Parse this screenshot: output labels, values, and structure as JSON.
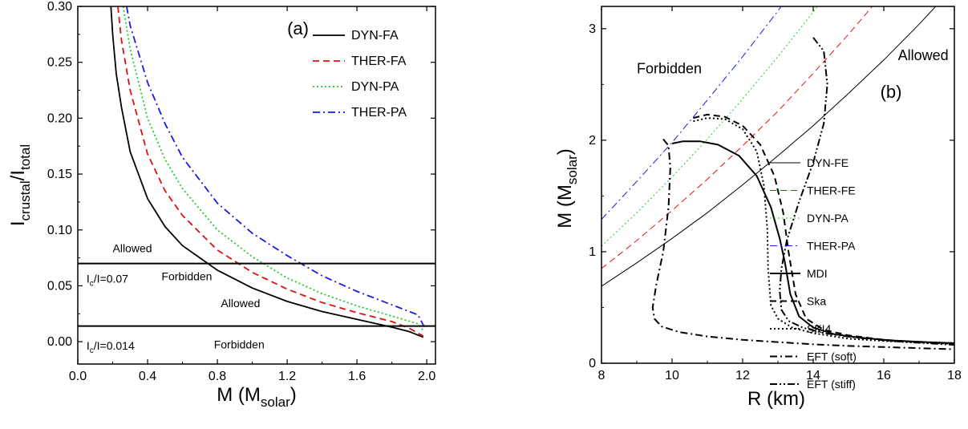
{
  "colors": {
    "black": "#000000",
    "red": "#e01010",
    "green": "#22cc22",
    "blue": "#1a1ae6"
  },
  "chart_data": [
    {
      "panel": "(a)",
      "type": "line",
      "xlabel": "M (M",
      "xlabel_sub": "solar",
      "xlabel_tail": ")",
      "ylabel_parts": [
        "I",
        "crustal",
        "/I",
        "total"
      ],
      "xlim": [
        0.0,
        2.05
      ],
      "ylim": [
        -0.02,
        0.3
      ],
      "x_ticks": [
        "0.0",
        "0.4",
        "0.8",
        "1.2",
        "1.6",
        "2.0"
      ],
      "x_tick_values": [
        0.0,
        0.4,
        0.8,
        1.2,
        1.6,
        2.0
      ],
      "y_ticks": [
        "0.00",
        "0.05",
        "0.10",
        "0.15",
        "0.20",
        "0.25",
        "0.30"
      ],
      "y_tick_values": [
        0.0,
        0.05,
        0.1,
        0.15,
        0.2,
        0.25,
        0.3
      ],
      "legend_position": "top-right",
      "series": [
        {
          "name": "DYN-FA",
          "color": "#000000",
          "dash": "solid",
          "x": [
            0.19,
            0.2,
            0.22,
            0.25,
            0.3,
            0.4,
            0.5,
            0.6,
            0.8,
            1.0,
            1.2,
            1.4,
            1.6,
            1.8,
            1.9,
            1.98
          ],
          "y": [
            0.3,
            0.275,
            0.24,
            0.21,
            0.17,
            0.128,
            0.103,
            0.086,
            0.064,
            0.048,
            0.036,
            0.027,
            0.02,
            0.013,
            0.009,
            0.004
          ]
        },
        {
          "name": "THER-FA",
          "color": "#e01010",
          "dash": "dash",
          "x": [
            0.23,
            0.25,
            0.3,
            0.4,
            0.5,
            0.6,
            0.8,
            1.0,
            1.2,
            1.4,
            1.6,
            1.8,
            1.9,
            1.98
          ],
          "y": [
            0.3,
            0.27,
            0.225,
            0.168,
            0.135,
            0.113,
            0.082,
            0.062,
            0.047,
            0.035,
            0.026,
            0.018,
            0.012,
            0.005
          ]
        },
        {
          "name": "DYN-PA",
          "color": "#22cc22",
          "dash": "dot",
          "x": [
            0.26,
            0.3,
            0.4,
            0.5,
            0.6,
            0.8,
            1.0,
            1.2,
            1.4,
            1.6,
            1.8,
            1.95,
            1.98
          ],
          "y": [
            0.3,
            0.262,
            0.2,
            0.163,
            0.137,
            0.1,
            0.076,
            0.057,
            0.043,
            0.032,
            0.023,
            0.016,
            0.01
          ]
        },
        {
          "name": "THER-PA",
          "color": "#1a1ae6",
          "dash": "dashdot",
          "x": [
            0.28,
            0.3,
            0.4,
            0.5,
            0.6,
            0.8,
            1.0,
            1.2,
            1.4,
            1.6,
            1.8,
            1.95,
            1.99
          ],
          "y": [
            0.3,
            0.283,
            0.232,
            0.195,
            0.165,
            0.124,
            0.097,
            0.077,
            0.059,
            0.045,
            0.033,
            0.024,
            0.012
          ]
        }
      ],
      "hlines": [
        0.07,
        0.014
      ],
      "annotations": [
        {
          "text": "(a)",
          "x": 1.2,
          "y": 0.275,
          "size": 22
        },
        {
          "text": "Allowed",
          "x": 0.2,
          "y": 0.08,
          "size": 14
        },
        {
          "text": "Forbidden",
          "x": 0.48,
          "y": 0.055,
          "size": 14
        },
        {
          "text": "Allowed",
          "x": 0.82,
          "y": 0.031,
          "size": 14
        },
        {
          "text": "Forbidden",
          "x": 0.78,
          "y": -0.006,
          "size": 14
        }
      ],
      "ic_labels": [
        {
          "main": "I",
          "sub": "c",
          "rest": "/I=0.07",
          "x": 0.05,
          "y": 0.053
        },
        {
          "main": "I",
          "sub": "c",
          "rest": "/I=0.014",
          "x": 0.05,
          "y": -0.007
        }
      ]
    },
    {
      "panel": "(b)",
      "type": "line",
      "xlabel": "R (km)",
      "ylabel": "M (M",
      "ylabel_sub": "solar",
      "ylabel_tail": ")",
      "xlim": [
        8,
        18
      ],
      "ylim": [
        0,
        3.2
      ],
      "x_ticks": [
        "8",
        "10",
        "12",
        "14",
        "16",
        "18"
      ],
      "x_tick_values": [
        8,
        10,
        12,
        14,
        16,
        18
      ],
      "y_ticks": [
        "0",
        "1",
        "2",
        "3"
      ],
      "y_tick_values": [
        0,
        1,
        2,
        3
      ],
      "legend_position": "right",
      "series": [
        {
          "name": "DYN-FE",
          "color": "#000000",
          "dash": "solid",
          "width": 1,
          "x": [
            8,
            9,
            10,
            11,
            12,
            13,
            14,
            15,
            16,
            17,
            18
          ],
          "y": [
            0.69,
            0.9,
            1.12,
            1.35,
            1.6,
            1.86,
            2.13,
            2.42,
            2.72,
            3.04,
            3.38
          ]
        },
        {
          "name": "THER-FE",
          "color": "#e01010",
          "dash": "dash",
          "width": 1,
          "x": [
            8,
            9,
            10,
            11,
            12,
            13,
            14,
            15,
            16,
            16.8
          ],
          "y": [
            0.85,
            1.1,
            1.37,
            1.65,
            1.95,
            2.26,
            2.6,
            2.95,
            3.32,
            3.6
          ]
        },
        {
          "name": "DYN-PA",
          "color": "#22cc22",
          "dash": "dot",
          "width": 1,
          "x": [
            8,
            9,
            10,
            11,
            12,
            13,
            14,
            14.5
          ],
          "y": [
            1.05,
            1.35,
            1.67,
            2.01,
            2.37,
            2.75,
            3.15,
            3.36
          ]
        },
        {
          "name": "THER-PA",
          "color": "#1a1ae6",
          "dash": "dashdot",
          "width": 1,
          "x": [
            8,
            9,
            10,
            11,
            12,
            13,
            13.7
          ],
          "y": [
            1.29,
            1.63,
            1.98,
            2.36,
            2.75,
            3.16,
            3.46
          ]
        },
        {
          "name": "MDI",
          "color": "#000000",
          "dash": "solid",
          "width": 2,
          "x": [
            10.0,
            10.3,
            10.8,
            11.3,
            11.9,
            12.4,
            12.8,
            13.05,
            13.2,
            13.35,
            13.6,
            14.0,
            14.6,
            15.3,
            16.2,
            17.2,
            18.0
          ],
          "y": [
            1.97,
            1.99,
            1.99,
            1.96,
            1.86,
            1.68,
            1.4,
            1.12,
            0.9,
            0.62,
            0.42,
            0.32,
            0.26,
            0.23,
            0.205,
            0.19,
            0.18
          ]
        },
        {
          "name": "Ska",
          "color": "#000000",
          "dash": "dash",
          "width": 2,
          "x": [
            10.6,
            11.0,
            11.5,
            12.0,
            12.5,
            12.9,
            13.15,
            13.3,
            13.5,
            13.8,
            14.3,
            15.0,
            16.0,
            17.0,
            18.0
          ],
          "y": [
            2.2,
            2.23,
            2.21,
            2.13,
            1.96,
            1.68,
            1.35,
            1.0,
            0.62,
            0.4,
            0.3,
            0.25,
            0.21,
            0.19,
            0.18
          ]
        },
        {
          "name": "SKI4",
          "color": "#000000",
          "dash": "dot",
          "width": 2,
          "x": [
            10.6,
            11.0,
            11.5,
            12.0,
            12.4,
            12.6,
            12.7,
            12.72,
            12.8,
            13.0,
            13.4,
            14.0,
            15.0,
            16.0,
            17.0,
            18.0
          ],
          "y": [
            2.17,
            2.2,
            2.19,
            2.1,
            1.9,
            1.6,
            1.2,
            0.85,
            0.52,
            0.4,
            0.32,
            0.27,
            0.22,
            0.2,
            0.185,
            0.175
          ]
        },
        {
          "name": "EFT (soft)",
          "color": "#000000",
          "dash": "dashdot",
          "width": 2,
          "x": [
            9.75,
            9.9,
            9.95,
            9.9,
            9.75,
            9.55,
            9.45,
            9.5,
            9.7,
            10.2,
            11.0,
            12.0,
            13.0,
            14.0,
            15.0,
            16.0,
            17.0,
            18.0
          ],
          "y": [
            2.01,
            1.95,
            1.75,
            1.4,
            1.0,
            0.7,
            0.5,
            0.4,
            0.33,
            0.28,
            0.24,
            0.21,
            0.19,
            0.17,
            0.155,
            0.145,
            0.135,
            0.125
          ]
        },
        {
          "name": "EFT (stiff)",
          "color": "#000000",
          "dash": "dashdotdot",
          "width": 2,
          "x": [
            14.0,
            14.3,
            14.4,
            14.3,
            14.0,
            13.6,
            13.25,
            13.1,
            13.05,
            13.1,
            13.3,
            13.7,
            14.3,
            15.2,
            16.2,
            17.2,
            18.0
          ],
          "y": [
            2.92,
            2.8,
            2.5,
            2.15,
            1.8,
            1.45,
            1.1,
            0.85,
            0.65,
            0.48,
            0.38,
            0.32,
            0.27,
            0.23,
            0.2,
            0.18,
            0.165
          ]
        }
      ],
      "annotations": [
        {
          "text": "Forbidden",
          "x": 9.0,
          "y": 2.6,
          "size": 18
        },
        {
          "text": "Allowed",
          "x": 16.4,
          "y": 2.72,
          "size": 18
        },
        {
          "text": "(b)",
          "x": 15.9,
          "y": 2.38,
          "size": 22
        }
      ]
    }
  ]
}
